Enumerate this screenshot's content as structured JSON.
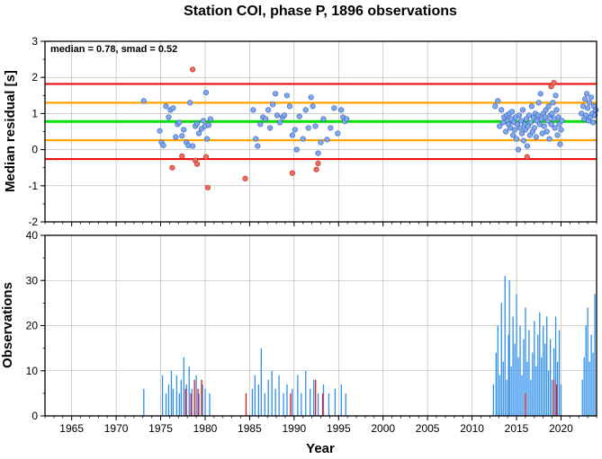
{
  "title": "Station COI, phase P, 1896 observations",
  "annotation": "median = 0.78, smad = 0.52",
  "colors": {
    "median_line": "#00e000",
    "smad_line": "#ffa500",
    "outer_line": "#ee1111",
    "point_ok": "#7ea8f2",
    "point_outlier": "#f26a5e",
    "bar_ok": "#2f8fee",
    "bar_outlier": "#e01818",
    "grid": "#b0b0b0"
  },
  "chart_data": [
    {
      "type": "scatter",
      "xlim": [
        1962,
        2024
      ],
      "ylim": [
        -2,
        3
      ],
      "ylabel": "Median residual [s]",
      "yticks": [
        "3",
        "2",
        "1",
        "0",
        "-1",
        "-2"
      ],
      "grid": true,
      "median": 0.78,
      "smad": 0.52,
      "hlines": [
        {
          "value": 1.82,
          "kind": "outer"
        },
        {
          "value": 1.3,
          "kind": "smad"
        },
        {
          "value": 0.78,
          "kind": "median"
        },
        {
          "value": 0.26,
          "kind": "smad"
        },
        {
          "value": -0.26,
          "kind": "outer"
        }
      ],
      "points": [
        [
          1973.1,
          1.35
        ],
        [
          1974.9,
          0.52
        ],
        [
          1975.1,
          0.2
        ],
        [
          1975.3,
          0.12
        ],
        [
          1975.6,
          1.2
        ],
        [
          1975.9,
          0.9
        ],
        [
          1976.1,
          1.1
        ],
        [
          1976.4,
          1.15
        ],
        [
          1976.7,
          0.35
        ],
        [
          1976.9,
          0.7
        ],
        [
          1977.1,
          0.75
        ],
        [
          1977.4,
          0.38
        ],
        [
          1977.6,
          0.55
        ],
        [
          1977.9,
          0.2
        ],
        [
          1978.1,
          0.12
        ],
        [
          1978.3,
          1.3
        ],
        [
          1978.6,
          0.1
        ],
        [
          1978.9,
          0.65
        ],
        [
          1979.1,
          0.72
        ],
        [
          1979.3,
          0.45
        ],
        [
          1979.6,
          0.58
        ],
        [
          1979.8,
          0.8
        ],
        [
          1980.0,
          0.65
        ],
        [
          1980.2,
          0.3
        ],
        [
          1980.4,
          0.68
        ],
        [
          1980.1,
          1.58
        ],
        [
          1980.6,
          0.85
        ],
        [
          1985.4,
          1.1
        ],
        [
          1985.7,
          0.3
        ],
        [
          1985.9,
          0.1
        ],
        [
          1986.2,
          0.7
        ],
        [
          1986.5,
          0.9
        ],
        [
          1986.8,
          0.85
        ],
        [
          1987.1,
          1.1
        ],
        [
          1987.3,
          0.6
        ],
        [
          1987.6,
          1.25
        ],
        [
          1987.9,
          1.55
        ],
        [
          1988.1,
          0.95
        ],
        [
          1988.4,
          0.75
        ],
        [
          1988.7,
          0.9
        ],
        [
          1988.9,
          0.95
        ],
        [
          1989.2,
          1.5
        ],
        [
          1989.5,
          1.2
        ],
        [
          1989.8,
          0.4
        ],
        [
          1990.1,
          0.55
        ],
        [
          1990.3,
          0.0
        ],
        [
          1990.6,
          0.92
        ],
        [
          1991.0,
          0.3
        ],
        [
          1991.3,
          1.1
        ],
        [
          1991.6,
          0.6
        ],
        [
          1991.9,
          1.45
        ],
        [
          1992.1,
          1.2
        ],
        [
          1992.4,
          0.65
        ],
        [
          1992.7,
          -0.1
        ],
        [
          1993.0,
          0.2
        ],
        [
          1993.3,
          0.85
        ],
        [
          1993.7,
          0.28
        ],
        [
          1994.1,
          0.6
        ],
        [
          1994.5,
          1.15
        ],
        [
          1994.9,
          0.45
        ],
        [
          1995.3,
          1.1
        ],
        [
          1995.5,
          0.9
        ],
        [
          1995.7,
          0.78
        ],
        [
          1995.9,
          0.85
        ],
        [
          2012.6,
          1.2
        ],
        [
          2012.9,
          1.35
        ],
        [
          2013.1,
          0.65
        ],
        [
          2013.3,
          1.1
        ],
        [
          2013.5,
          0.75
        ],
        [
          2013.6,
          0.9
        ],
        [
          2013.8,
          0.5
        ],
        [
          2013.9,
          0.95
        ],
        [
          2014.0,
          0.8
        ],
        [
          2014.1,
          0.7
        ],
        [
          2014.2,
          1.0
        ],
        [
          2014.3,
          0.6
        ],
        [
          2014.4,
          0.85
        ],
        [
          2014.5,
          1.05
        ],
        [
          2014.6,
          0.4
        ],
        [
          2014.7,
          0.75
        ],
        [
          2014.8,
          0.55
        ],
        [
          2014.9,
          0.9
        ],
        [
          2015.0,
          0.3
        ],
        [
          2015.1,
          0.7
        ],
        [
          2015.2,
          0.0
        ],
        [
          2015.3,
          0.95
        ],
        [
          2015.4,
          0.6
        ],
        [
          2015.5,
          0.8
        ],
        [
          2015.6,
          0.45
        ],
        [
          2015.7,
          1.1
        ],
        [
          2015.8,
          0.25
        ],
        [
          2015.9,
          0.7
        ],
        [
          2016.0,
          0.55
        ],
        [
          2016.1,
          0.85
        ],
        [
          2016.2,
          0.1
        ],
        [
          2016.3,
          0.65
        ],
        [
          2016.4,
          0.95
        ],
        [
          2016.5,
          0.4
        ],
        [
          2016.6,
          0.75
        ],
        [
          2016.7,
          1.2
        ],
        [
          2016.8,
          0.5
        ],
        [
          2016.9,
          0.9
        ],
        [
          2017.0,
          0.6
        ],
        [
          2017.1,
          1.0
        ],
        [
          2017.2,
          0.35
        ],
        [
          2017.3,
          0.8
        ],
        [
          2017.4,
          0.95
        ],
        [
          2017.5,
          1.3
        ],
        [
          2017.6,
          0.7
        ],
        [
          2017.7,
          1.55
        ],
        [
          2017.8,
          0.85
        ],
        [
          2017.9,
          0.45
        ],
        [
          2018.0,
          1.0
        ],
        [
          2018.1,
          0.65
        ],
        [
          2018.2,
          0.9
        ],
        [
          2018.3,
          1.1
        ],
        [
          2018.4,
          0.5
        ],
        [
          2018.5,
          0.8
        ],
        [
          2018.6,
          1.2
        ],
        [
          2018.7,
          0.3
        ],
        [
          2018.8,
          0.95
        ],
        [
          2018.9,
          0.7
        ],
        [
          2019.0,
          1.0
        ],
        [
          2019.1,
          1.3
        ],
        [
          2019.2,
          0.85
        ],
        [
          2019.3,
          0.6
        ],
        [
          2019.4,
          1.5
        ],
        [
          2019.5,
          1.1
        ],
        [
          2019.6,
          0.4
        ],
        [
          2019.7,
          0.9
        ],
        [
          2019.8,
          0.7
        ],
        [
          2019.9,
          0.15
        ],
        [
          2020.0,
          0.55
        ],
        [
          2020.1,
          0.8
        ],
        [
          2022.3,
          1.0
        ],
        [
          2022.5,
          1.2
        ],
        [
          2022.6,
          0.85
        ],
        [
          2022.7,
          1.4
        ],
        [
          2022.8,
          0.95
        ],
        [
          2022.9,
          1.55
        ],
        [
          2023.0,
          1.15
        ],
        [
          2023.1,
          0.8
        ],
        [
          2023.2,
          1.3
        ],
        [
          2023.3,
          0.9
        ],
        [
          2023.4,
          1.45
        ],
        [
          2023.5,
          1.0
        ],
        [
          2023.6,
          0.75
        ],
        [
          2023.7,
          1.2
        ],
        [
          2023.8,
          0.95
        ],
        [
          2023.9,
          1.1
        ]
      ],
      "outliers": [
        [
          1978.6,
          2.22
        ],
        [
          1978.9,
          -0.3
        ],
        [
          1979.1,
          -0.4
        ],
        [
          1977.4,
          -0.18
        ],
        [
          1976.3,
          -0.5
        ],
        [
          1980.3,
          -1.05
        ],
        [
          1980.1,
          -0.2
        ],
        [
          1984.5,
          -0.8
        ],
        [
          1989.8,
          -0.65
        ],
        [
          1992.5,
          -0.55
        ],
        [
          1992.7,
          -0.38
        ],
        [
          2016.2,
          -0.2
        ],
        [
          2018.9,
          1.75
        ],
        [
          2019.2,
          1.85
        ]
      ]
    },
    {
      "type": "bar",
      "xlim": [
        1962,
        2024
      ],
      "ylim": [
        0,
        40
      ],
      "xlabel": "Year",
      "ylabel": "Observations",
      "xticks": [
        "1965",
        "1970",
        "1975",
        "1980",
        "1985",
        "1990",
        "1995",
        "2000",
        "2005",
        "2010",
        "2015",
        "2020"
      ],
      "yticks": [
        "40",
        "30",
        "20",
        "10",
        "0"
      ],
      "grid": true,
      "bars": [
        [
          1973.1,
          6
        ],
        [
          1975.2,
          9
        ],
        [
          1975.6,
          5
        ],
        [
          1975.9,
          7
        ],
        [
          1976.2,
          10
        ],
        [
          1976.4,
          6
        ],
        [
          1976.8,
          9
        ],
        [
          1977.1,
          5
        ],
        [
          1977.3,
          8
        ],
        [
          1977.6,
          13
        ],
        [
          1977.9,
          7
        ],
        [
          1978.2,
          11
        ],
        [
          1978.5,
          6
        ],
        [
          1979.0,
          9
        ],
        [
          1979.3,
          5
        ],
        [
          1979.7,
          7
        ],
        [
          1980.0,
          6
        ],
        [
          1980.5,
          5
        ],
        [
          1985.3,
          6
        ],
        [
          1985.6,
          9
        ],
        [
          1986.0,
          7
        ],
        [
          1986.3,
          15
        ],
        [
          1986.7,
          5
        ],
        [
          1987.1,
          8
        ],
        [
          1987.5,
          10
        ],
        [
          1987.9,
          6
        ],
        [
          1988.3,
          9
        ],
        [
          1988.8,
          5
        ],
        [
          1989.2,
          7
        ],
        [
          1989.8,
          6
        ],
        [
          1990.4,
          9
        ],
        [
          1990.8,
          5
        ],
        [
          1991.3,
          10
        ],
        [
          1991.8,
          6
        ],
        [
          1992.2,
          8
        ],
        [
          1992.7,
          5
        ],
        [
          1993.3,
          7
        ],
        [
          1993.9,
          5
        ],
        [
          1994.6,
          6
        ],
        [
          1995.3,
          7
        ],
        [
          1995.8,
          5
        ],
        [
          2012.4,
          7
        ],
        [
          2012.7,
          14
        ],
        [
          2012.9,
          20
        ],
        [
          2013.1,
          9
        ],
        [
          2013.3,
          25
        ],
        [
          2013.5,
          12
        ],
        [
          2013.7,
          31
        ],
        [
          2013.9,
          8
        ],
        [
          2014.1,
          18
        ],
        [
          2014.2,
          30
        ],
        [
          2014.4,
          11
        ],
        [
          2014.6,
          22
        ],
        [
          2014.8,
          16
        ],
        [
          2015.0,
          27
        ],
        [
          2015.2,
          13
        ],
        [
          2015.4,
          20
        ],
        [
          2015.6,
          9
        ],
        [
          2015.8,
          17
        ],
        [
          2016.0,
          24
        ],
        [
          2016.2,
          12
        ],
        [
          2016.4,
          19
        ],
        [
          2016.6,
          8
        ],
        [
          2016.8,
          14
        ],
        [
          2017.0,
          21
        ],
        [
          2017.2,
          11
        ],
        [
          2017.4,
          18
        ],
        [
          2017.6,
          23
        ],
        [
          2017.8,
          13
        ],
        [
          2018.0,
          20
        ],
        [
          2018.2,
          16
        ],
        [
          2018.4,
          22
        ],
        [
          2018.6,
          10
        ],
        [
          2018.8,
          17
        ],
        [
          2019.0,
          8
        ],
        [
          2019.2,
          15
        ],
        [
          2019.4,
          22
        ],
        [
          2019.6,
          12
        ],
        [
          2019.8,
          19
        ],
        [
          2020.0,
          7
        ],
        [
          2022.4,
          8
        ],
        [
          2022.6,
          13
        ],
        [
          2022.8,
          20
        ],
        [
          2023.0,
          24
        ],
        [
          2023.2,
          12
        ],
        [
          2023.4,
          18
        ],
        [
          2023.6,
          14
        ],
        [
          2023.8,
          27
        ]
      ],
      "outlier_bars": [
        [
          1977.8,
          6
        ],
        [
          1978.4,
          5
        ],
        [
          1978.8,
          8
        ],
        [
          1979.2,
          6
        ],
        [
          1979.6,
          8
        ],
        [
          1984.6,
          5
        ],
        [
          1989.6,
          5
        ],
        [
          1992.4,
          8
        ],
        [
          1993.2,
          5
        ],
        [
          2016.0,
          5
        ],
        [
          2019.2,
          8
        ],
        [
          2019.5,
          7
        ]
      ]
    }
  ]
}
